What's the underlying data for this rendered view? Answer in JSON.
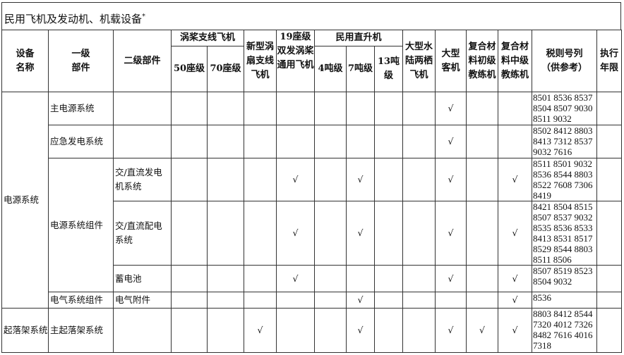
{
  "title": "民用飞机及发动机、机载设备",
  "title_mark": "*",
  "headers": {
    "equipment": "设备名称",
    "level1": "一级部件",
    "level2": "二级部件",
    "turboprop_group": "涡桨支线飞机",
    "seat50": "50座级",
    "seat70": "70座级",
    "turbofan": "新型涡扇支线飞机",
    "seat19": "19座级双发涡桨通用飞机",
    "heli_group": "民用直升机",
    "ton4": "4吨级",
    "ton7": "7吨级",
    "ton13": "13吨级",
    "amphibian": "大型水陆两栖飞机",
    "airliner": "大型客机",
    "composite_primary": "复合材料初级教练机",
    "composite_intermediate": "复合材料中级教练机",
    "tariff": "税则号列（供参考）",
    "period": "执行年限"
  },
  "check_mark": "√",
  "rows": [
    {
      "equipment": "电源系统",
      "level1": "主电源系统",
      "level2": "",
      "checks": [
        0,
        0,
        0,
        0,
        0,
        0,
        0,
        0,
        1,
        0,
        0
      ],
      "codes": "8501 8536 8537 8504 8507 9030 8511 9032",
      "period": ""
    },
    {
      "level1": "应急发电系统",
      "level2": "",
      "checks": [
        0,
        0,
        0,
        0,
        0,
        0,
        0,
        0,
        1,
        0,
        0
      ],
      "codes": "8502 8412 8803 8413 7312 8537 9032 7616",
      "period": ""
    },
    {
      "level1": "电源系统组件",
      "level2": "交/直流发电机系统",
      "checks": [
        0,
        0,
        0,
        1,
        0,
        1,
        0,
        0,
        1,
        0,
        1
      ],
      "codes": "8511 8501 9032 8536 8544 8803 8522 7608 7306 8419",
      "period": ""
    },
    {
      "level2": "交/直流配电系统",
      "checks": [
        0,
        0,
        0,
        1,
        0,
        1,
        0,
        0,
        1,
        0,
        1
      ],
      "codes": "8421 8504 8515 8507 8537 9032 8535 8536 8533 8413 8531 8517 8529 8544 8803 8511 8506",
      "period": ""
    },
    {
      "level2": "蓄电池",
      "checks": [
        0,
        0,
        0,
        1,
        0,
        0,
        0,
        0,
        1,
        0,
        1
      ],
      "codes": "8507 8519 8523 8504 9032",
      "period": ""
    },
    {
      "level1": "电气系统组件",
      "level2": "电气附件",
      "checks": [
        0,
        0,
        0,
        0,
        0,
        1,
        0,
        0,
        0,
        0,
        1
      ],
      "codes": "8536",
      "period": ""
    },
    {
      "equipment": "起落架系统",
      "level1": "主起落架系统",
      "level2": "",
      "checks": [
        0,
        0,
        1,
        0,
        0,
        1,
        0,
        0,
        1,
        1,
        1
      ],
      "codes": "8803 8412 8544 7320 4012 7326 8482 7616 4016 7318",
      "period": ""
    }
  ]
}
